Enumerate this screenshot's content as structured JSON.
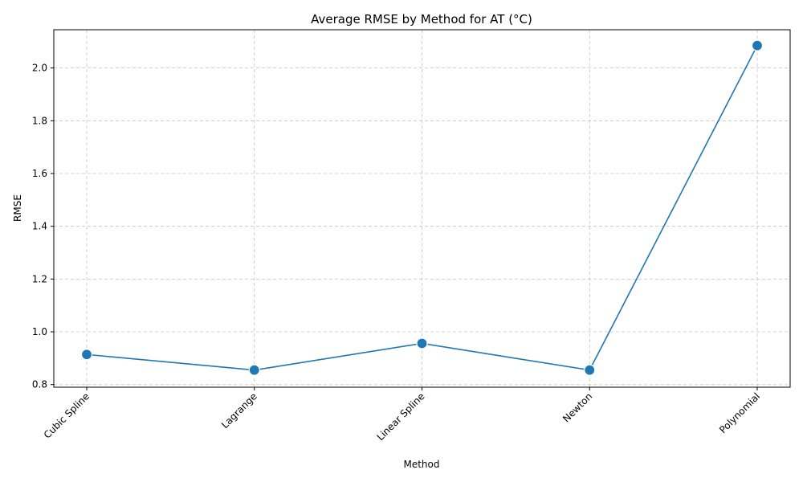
{
  "chart_data": {
    "type": "line",
    "title": "Average RMSE by Method for AT (°C)",
    "xlabel": "Method",
    "ylabel": "RMSE",
    "categories": [
      "Cubic Spline",
      "Lagrange",
      "Linear Spline",
      "Newton",
      "Polynomial"
    ],
    "series": [
      {
        "values": [
          0.914,
          0.855,
          0.956,
          0.855,
          2.085
        ]
      }
    ],
    "ylim": [
      0.79,
      2.145
    ],
    "yticks": [
      0.8,
      1.0,
      1.2,
      1.4,
      1.6,
      1.8,
      2.0
    ],
    "ytick_labels": [
      "0.8",
      "1.0",
      "1.2",
      "1.4",
      "1.6",
      "1.8",
      "2.0"
    ],
    "grid": true,
    "line_color": "#1f77b4",
    "marker": "circle"
  }
}
